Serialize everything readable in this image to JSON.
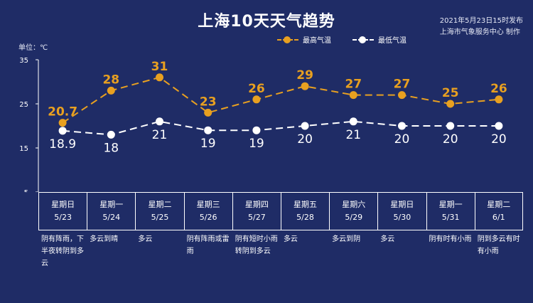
{
  "header": {
    "title": "上海10天天气趋势",
    "published": "2021年5月23日15时发布",
    "publisher": "上海市气象服务中心 制作"
  },
  "colors": {
    "background": "#1f2c66",
    "high": "#e8a020",
    "low": "#ffffff"
  },
  "chart_data": {
    "type": "line",
    "title": "上海10天天气趋势",
    "ylabel": "单位：℃",
    "ylim": [
      5,
      35
    ],
    "yticks": [
      5,
      15,
      25,
      35
    ],
    "grid": false,
    "legend_placement": "top-right",
    "categories": [
      "5/23",
      "5/24",
      "5/25",
      "5/26",
      "5/27",
      "5/28",
      "5/29",
      "5/30",
      "5/31",
      "6/1"
    ],
    "series": [
      {
        "name": "最高气温",
        "values": [
          20.7,
          28,
          31,
          23,
          26,
          29,
          27,
          27,
          25,
          26
        ],
        "labels": [
          "20.7",
          "28",
          "31",
          "23",
          "26",
          "29",
          "27",
          "27",
          "25",
          "26"
        ]
      },
      {
        "name": "最低气温",
        "values": [
          18.9,
          18,
          21,
          19,
          19,
          20,
          21,
          20,
          20,
          20
        ],
        "labels": [
          "18.9",
          "18",
          "21",
          "19",
          "19",
          "20",
          "21",
          "20",
          "20",
          "20"
        ]
      }
    ]
  },
  "days": [
    {
      "weekday": "星期日",
      "date": "5/23",
      "weather": "阴有阵雨，下半夜转阴到多云"
    },
    {
      "weekday": "星期一",
      "date": "5/24",
      "weather": "多云到晴"
    },
    {
      "weekday": "星期二",
      "date": "5/25",
      "weather": "多云"
    },
    {
      "weekday": "星期三",
      "date": "5/26",
      "weather": "阴有阵雨或雷雨"
    },
    {
      "weekday": "星期四",
      "date": "5/27",
      "weather": "阴有短时小雨转阴到多云"
    },
    {
      "weekday": "星期五",
      "date": "5/28",
      "weather": "多云"
    },
    {
      "weekday": "星期六",
      "date": "5/29",
      "weather": "多云到阴"
    },
    {
      "weekday": "星期日",
      "date": "5/30",
      "weather": "多云"
    },
    {
      "weekday": "星期一",
      "date": "5/31",
      "weather": "阴有时有小雨"
    },
    {
      "weekday": "星期二",
      "date": "6/1",
      "weather": "阴到多云有时有小雨"
    }
  ]
}
